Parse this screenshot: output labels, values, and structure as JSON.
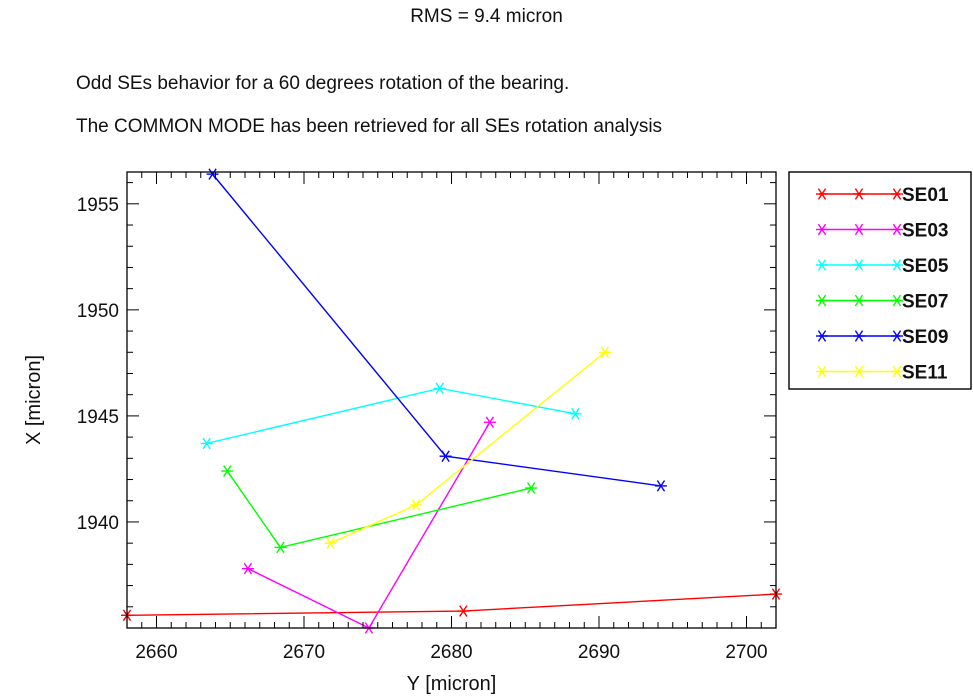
{
  "header": {
    "title": "RMS = 9.4 micron",
    "subtitle_1": "Odd SEs behavior for a 60 degrees rotation of the bearing.",
    "subtitle_2": "The COMMON MODE has been retrieved for all SEs rotation analysis"
  },
  "chart_data": {
    "type": "line",
    "title": "RMS = 9.4 micron",
    "xlabel": "Y [micron]",
    "ylabel": "X [micron]",
    "xlim": [
      2658,
      2702
    ],
    "ylim": [
      1935,
      1956.5
    ],
    "xticks": [
      2660,
      2670,
      2680,
      2690,
      2700
    ],
    "yticks": [
      1940,
      1945,
      1950,
      1955
    ],
    "grid": false,
    "legend_position": "outside-right",
    "marker": "star",
    "series": [
      {
        "name": "SE01",
        "color": "#ff0000",
        "points": [
          [
            2658.0,
            1935.6
          ],
          [
            2680.8,
            1935.8
          ],
          [
            2702.0,
            1936.6
          ]
        ]
      },
      {
        "name": "SE03",
        "color": "#ff00ff",
        "points": [
          [
            2666.2,
            1937.8
          ],
          [
            2674.4,
            1935.0
          ],
          [
            2682.6,
            1944.7
          ]
        ]
      },
      {
        "name": "SE05",
        "color": "#00ffff",
        "points": [
          [
            2663.4,
            1943.7
          ],
          [
            2679.2,
            1946.3
          ],
          [
            2688.4,
            1945.1
          ]
        ]
      },
      {
        "name": "SE07",
        "color": "#00ff00",
        "points": [
          [
            2664.8,
            1942.4
          ],
          [
            2668.4,
            1938.8
          ],
          [
            2685.4,
            1941.6
          ]
        ]
      },
      {
        "name": "SE09",
        "color": "#0000ff",
        "points": [
          [
            2663.8,
            1956.4
          ],
          [
            2679.6,
            1943.1
          ],
          [
            2694.2,
            1941.7
          ]
        ]
      },
      {
        "name": "SE11",
        "color": "#ffff00",
        "points": [
          [
            2671.8,
            1939.0
          ],
          [
            2677.6,
            1940.8
          ],
          [
            2690.4,
            1948.0
          ]
        ]
      }
    ]
  }
}
